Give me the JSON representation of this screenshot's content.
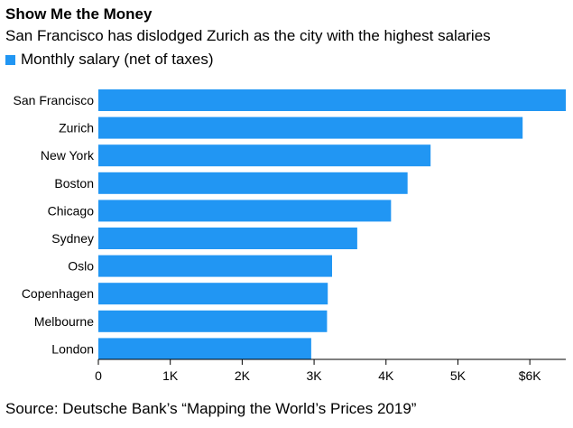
{
  "colors": {
    "bar": "#2196f3",
    "axis": "#000000"
  },
  "chart_data": {
    "type": "bar",
    "orientation": "horizontal",
    "title": "Show Me the Money",
    "subtitle": "San Francisco has dislodged Zurich as the city with the highest salaries",
    "legend": {
      "label": "Monthly salary (net of taxes)",
      "placement": "top-left"
    },
    "categories": [
      "San Francisco",
      "Zurich",
      "New York",
      "Boston",
      "Chicago",
      "Sydney",
      "Oslo",
      "Copenhagen",
      "Melbourne",
      "London"
    ],
    "series": [
      {
        "name": "Monthly salary (net of taxes)",
        "values": [
          6526,
          5900,
          4620,
          4300,
          4070,
          3600,
          3250,
          3190,
          3180,
          2960
        ]
      }
    ],
    "xlim": [
      0,
      6500
    ],
    "xticks": [
      0,
      1000,
      2000,
      3000,
      4000,
      5000,
      6000
    ],
    "xtick_labels": [
      "0",
      "1K",
      "2K",
      "3K",
      "4K",
      "5K",
      "$6K"
    ],
    "grid": false,
    "source": "Source: Deutsche Bank’s “Mapping the World’s Prices 2019”"
  }
}
